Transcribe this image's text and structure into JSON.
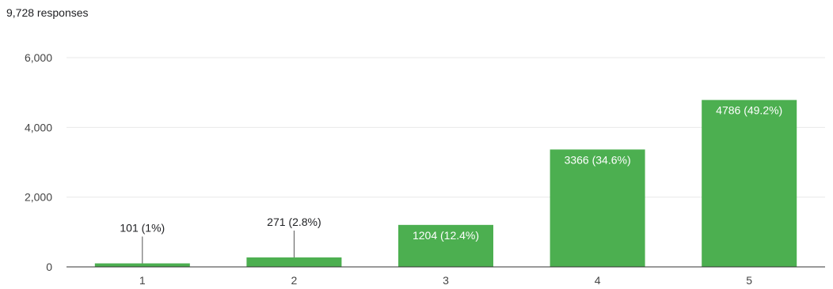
{
  "summary": {
    "responses": "9,728 responses"
  },
  "colors": {
    "bar": "#4caf50",
    "grid": "#e8e8e8",
    "axis": "#333333"
  },
  "chart_data": {
    "type": "bar",
    "categories": [
      "1",
      "2",
      "3",
      "4",
      "5"
    ],
    "values": [
      101,
      271,
      1204,
      3366,
      4786
    ],
    "data_labels": [
      "101 (1%)",
      "271 (2.8%)",
      "1204 (12.4%)",
      "3366 (34.6%)",
      "4786 (49.2%)"
    ],
    "y_ticks": [
      0,
      2000,
      4000,
      6000
    ],
    "y_tick_labels": [
      "0",
      "2,000",
      "4,000",
      "6,000"
    ],
    "ylim": [
      0,
      6000
    ],
    "grid": true,
    "legend": "none"
  }
}
